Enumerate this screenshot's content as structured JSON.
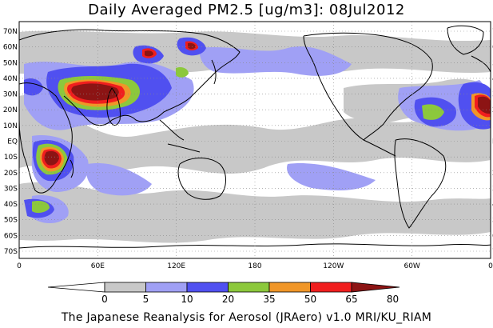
{
  "title": "Daily Averaged PM2.5 [ug/m3]: 08Jul2012",
  "footer": "The Japanese Reanalysis for Aerosol (JRAero) v1.0 MRI/KU_RIAM",
  "latitude_labels": [
    "70N",
    "60N",
    "50N",
    "40N",
    "30N",
    "20N",
    "10N",
    "EQ",
    "10S",
    "20S",
    "30S",
    "40S",
    "50S",
    "60S",
    "70S"
  ],
  "longitude_labels": [
    "0",
    "60E",
    "120E",
    "180",
    "120W",
    "60W",
    "0"
  ],
  "colorbar": {
    "ticks": [
      "0",
      "5",
      "10",
      "20",
      "35",
      "50",
      "65",
      "80"
    ],
    "colors": [
      "#ffffff",
      "#c8c8c8",
      "#a0a0f5",
      "#5050f0",
      "#8cc83c",
      "#f09628",
      "#f01e1e",
      "#8c1414"
    ]
  },
  "colors": {
    "land": "#ffffff",
    "coast": "#000000",
    "grid": "#888888"
  }
}
